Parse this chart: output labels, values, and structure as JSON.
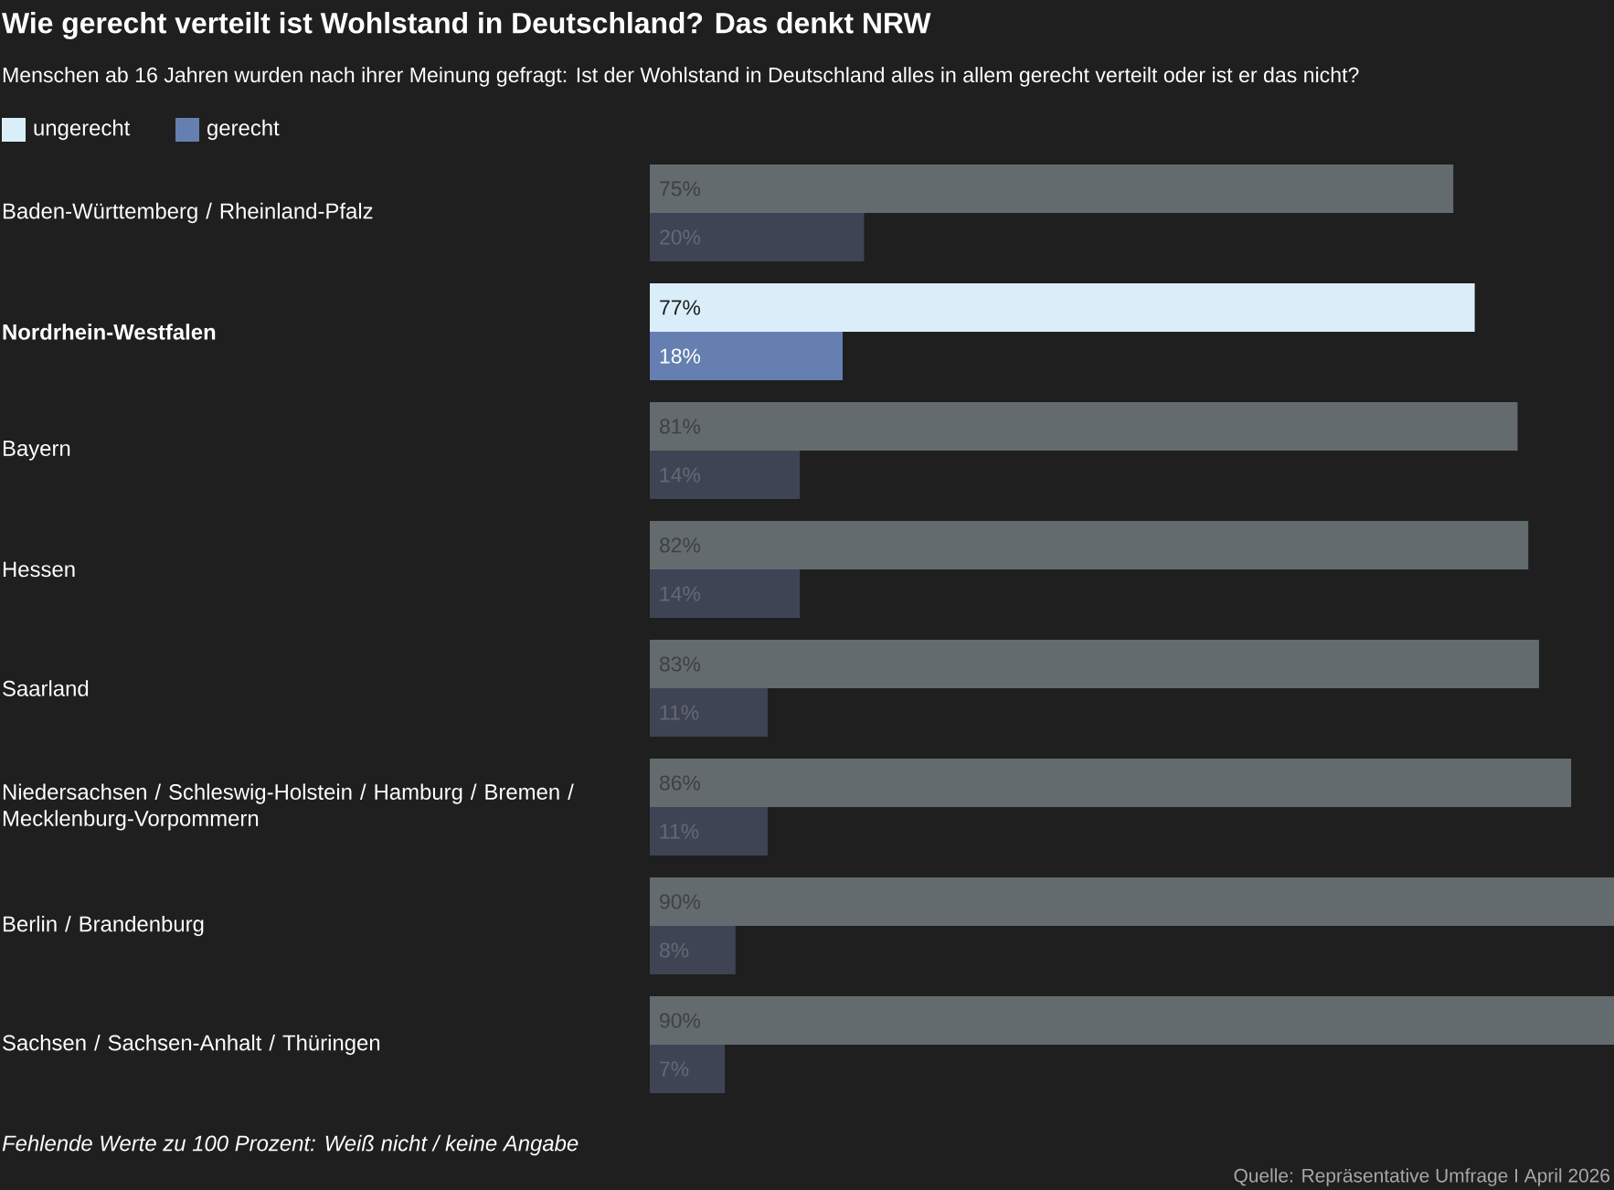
{
  "chart_data": {
    "type": "bar",
    "orientation": "horizontal",
    "title": "Wie gerecht verteilt ist Wohlstand in Deutschland? Das denkt NRW",
    "subtitle": "Menschen ab 16 Jahren wurden nach ihrer Meinung gefragt: Ist der Wohlstand in Deutschland alles in allem gerecht verteilt oder ist er das nicht?",
    "categories": [
      "Baden-Württemberg / Rheinland-Pfalz",
      "**Nordrhein-Westfalen**",
      "Bayern",
      "Hessen",
      "Saarland",
      "Niedersachsen / Schleswig-Holstein / Hamburg / Bremen / Mecklenburg-Vorpommern",
      "Berlin / Brandenburg",
      "Sachsen / Sachsen-Anhalt / Thüringen"
    ],
    "series": [
      {
        "name": "ungerecht",
        "color": "#daeefa",
        "values": [
          75,
          77,
          81,
          82,
          83,
          86,
          90,
          90
        ],
        "value_labels": [
          "75%",
          "77%",
          "81%",
          "82%",
          "83%",
          "86%",
          "90%",
          "90%"
        ],
        "colors": [
          "#646b6f",
          "#daeefa",
          "#646b6f",
          "#646b6f",
          "#646b6f",
          "#646b6f",
          "#646b6f",
          "#646b6f"
        ]
      },
      {
        "name": "gerecht",
        "color": "#6580b0",
        "values": [
          20,
          18,
          14,
          14,
          11,
          11,
          8,
          7
        ],
        "value_labels": [
          "20%",
          "18%",
          "14%",
          "14%",
          "11%",
          "11%",
          "8%",
          "7%"
        ],
        "colors": [
          "#3e4453",
          "#6580b0",
          "#3e4453",
          "#3e4453",
          "#3e4453",
          "#3e4453",
          "#3e4453",
          "#3e4453"
        ]
      }
    ],
    "xlim": [
      0,
      90
    ],
    "tick_labels": "y",
    "legend": "top left",
    "annotations": [
      "Fehlende Werte zu 100 Prozent: Weiß nicht / keine Angabe",
      "Quelle: Repräsentative Umfrage I April 2026"
    ]
  }
}
